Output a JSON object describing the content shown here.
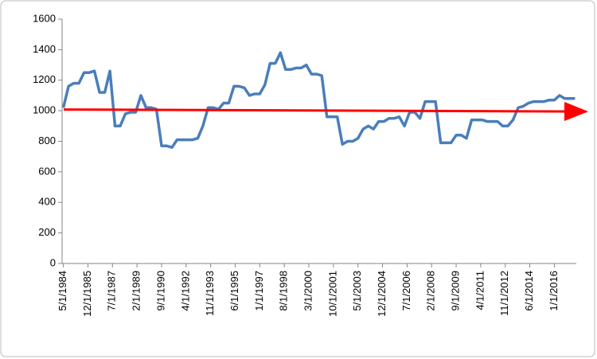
{
  "chart_data": {
    "type": "line",
    "x": [
      "5/1/1984",
      "9/1/1984",
      "1/1/1985",
      "5/1/1985",
      "9/1/1985",
      "1/1/1986",
      "5/1/1986",
      "9/1/1986",
      "1/1/1987",
      "5/1/1987",
      "9/1/1987",
      "1/1/1988",
      "5/1/1988",
      "9/1/1988",
      "1/1/1989",
      "5/1/1989",
      "9/1/1989",
      "1/1/1990",
      "5/1/1990",
      "9/1/1990",
      "1/1/1991",
      "5/1/1991",
      "9/1/1991",
      "1/1/1992",
      "5/1/1992",
      "9/1/1992",
      "1/1/1993",
      "5/1/1993",
      "9/1/1993",
      "1/1/1994",
      "5/1/1994",
      "9/1/1994",
      "1/1/1995",
      "5/1/1995",
      "9/1/1995",
      "1/1/1996",
      "5/1/1996",
      "9/1/1996",
      "1/1/1997",
      "5/1/1997",
      "9/1/1997",
      "1/1/1998",
      "5/1/1998",
      "9/1/1998",
      "1/1/1999",
      "5/1/1999",
      "9/1/1999",
      "1/1/2000",
      "5/1/2000",
      "9/1/2000",
      "1/1/2001",
      "5/1/2001",
      "9/1/2001",
      "1/1/2002",
      "5/1/2002",
      "9/1/2002",
      "1/1/2003",
      "5/1/2003",
      "9/1/2003",
      "1/1/2004",
      "5/1/2004",
      "9/1/2004",
      "1/1/2005",
      "5/1/2005",
      "9/1/2005",
      "1/1/2006",
      "5/1/2006",
      "9/1/2006",
      "1/1/2007",
      "5/1/2007",
      "9/1/2007",
      "1/1/2008",
      "5/1/2008",
      "9/1/2008",
      "1/1/2009",
      "5/1/2009",
      "9/1/2009",
      "1/1/2010",
      "5/1/2010",
      "9/1/2010",
      "1/1/2011",
      "5/1/2011",
      "9/1/2011",
      "1/1/2012",
      "5/1/2012",
      "9/1/2012",
      "1/1/2013",
      "5/1/2013",
      "9/1/2013",
      "1/1/2014",
      "5/1/2014",
      "9/1/2014",
      "1/1/2015",
      "5/1/2015",
      "9/1/2015",
      "1/1/2016",
      "5/1/2016",
      "9/1/2016",
      "1/1/2017",
      "5/1/2017"
    ],
    "series": [
      {
        "color": "#4a7ebb",
        "values": [
          1020,
          1160,
          1180,
          1180,
          1250,
          1250,
          1260,
          1120,
          1120,
          1260,
          900,
          900,
          980,
          990,
          990,
          1100,
          1020,
          1020,
          1010,
          770,
          770,
          760,
          810,
          810,
          810,
          810,
          820,
          900,
          1020,
          1020,
          1010,
          1050,
          1050,
          1160,
          1160,
          1150,
          1100,
          1110,
          1110,
          1170,
          1310,
          1310,
          1380,
          1270,
          1270,
          1280,
          1280,
          1300,
          1240,
          1240,
          1230,
          960,
          960,
          960,
          780,
          800,
          800,
          820,
          880,
          900,
          880,
          930,
          930,
          950,
          950,
          960,
          900,
          990,
          990,
          950,
          1060,
          1060,
          1060,
          790,
          790,
          790,
          840,
          840,
          820,
          940,
          940,
          940,
          930,
          930,
          930,
          900,
          900,
          940,
          1020,
          1030,
          1050,
          1060,
          1060,
          1060,
          1070,
          1070,
          1100,
          1080,
          1080,
          1080
        ]
      }
    ],
    "arrow": {
      "color": "#ff0000",
      "values": [
        1008,
        995
      ]
    },
    "xlim": [
      "4/1/1984",
      "6/1/2017"
    ],
    "xticks": [
      "5/1/1984",
      "12/1/1985",
      "7/1/1987",
      "2/1/1989",
      "9/1/1990",
      "4/1/1992",
      "11/1/1993",
      "6/1/1995",
      "1/1/1997",
      "8/1/1998",
      "3/1/2000",
      "10/1/2001",
      "5/1/2003",
      "12/1/2004",
      "7/1/2006",
      "2/1/2008",
      "9/1/2009",
      "4/1/2011",
      "11/1/2012",
      "6/1/2014",
      "1/1/2016"
    ],
    "ylim": [
      0,
      1600
    ],
    "yticks": [
      0,
      200,
      400,
      600,
      800,
      1000,
      1200,
      1400,
      1600
    ],
    "grid": false
  }
}
